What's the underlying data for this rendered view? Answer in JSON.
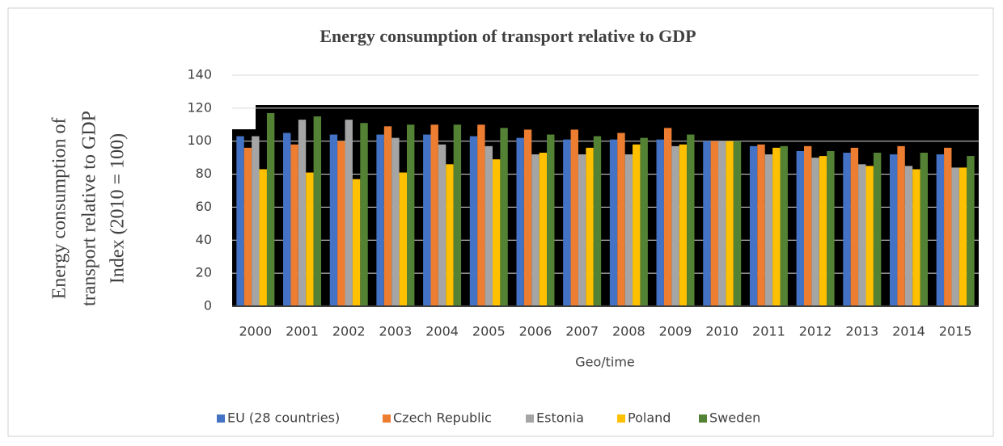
{
  "chart_data": {
    "type": "bar",
    "title": "Energy consumption of transport relative to GDP",
    "y_label": [
      "Energy consumption of",
      "transport relative to  GDP",
      "Index (2010 = 100)"
    ],
    "x_label": "Geo/time",
    "categories": [
      "2000",
      "2001",
      "2002",
      "2003",
      "2004",
      "2005",
      "2006",
      "2007",
      "2008",
      "2009",
      "2010",
      "2011",
      "2012",
      "2013",
      "2014",
      "2015"
    ],
    "series": [
      {
        "name": "EU (28 countries)",
        "color": "#4472c4",
        "values": [
          103,
          105,
          104,
          104,
          104,
          103,
          102,
          101,
          101,
          101,
          100,
          97,
          94,
          93,
          92,
          92
        ]
      },
      {
        "name": "Czech Republic",
        "color": "#ed7d31",
        "values": [
          96,
          98,
          100,
          109,
          110,
          110,
          107,
          107,
          105,
          108,
          100,
          98,
          97,
          96,
          97,
          96
        ]
      },
      {
        "name": "Estonia",
        "color": "#a5a5a5",
        "values": [
          103,
          113,
          113,
          102,
          98,
          97,
          92,
          92,
          92,
          97,
          100,
          92,
          90,
          86,
          85,
          84
        ]
      },
      {
        "name": "Poland",
        "color": "#ffc000",
        "values": [
          83,
          81,
          77,
          81,
          86,
          89,
          93,
          96,
          98,
          98,
          100,
          96,
          91,
          85,
          83,
          84
        ]
      },
      {
        "name": "Sweden",
        "color": "#548235",
        "values": [
          117,
          115,
          111,
          110,
          110,
          108,
          104,
          103,
          102,
          104,
          100,
          97,
          94,
          93,
          93,
          91
        ]
      }
    ],
    "ylim": [
      0,
      140
    ],
    "yticks": [
      0,
      20,
      40,
      60,
      80,
      100,
      120,
      140
    ],
    "grid": true,
    "legend": "bottom"
  }
}
